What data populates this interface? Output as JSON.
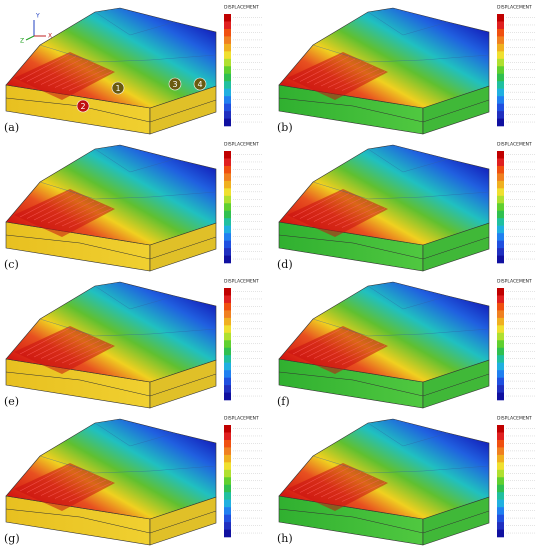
{
  "panels": [
    {
      "label": "(a)",
      "legend_title": "DISPLACEMENT"
    },
    {
      "label": "(b)",
      "legend_title": "DISPLACEMENT"
    },
    {
      "label": "(c)",
      "legend_title": "DISPLACEMENT"
    },
    {
      "label": "(d)",
      "legend_title": "DISPLACEMENT"
    },
    {
      "label": "(e)",
      "legend_title": "DISPLACEMENT"
    },
    {
      "label": "(f)",
      "legend_title": "DISPLACEMENT"
    },
    {
      "label": "(g)",
      "legend_title": "DISPLACEMENT"
    },
    {
      "label": "(h)",
      "legend_title": "DISPLACEMENT"
    }
  ],
  "points": [
    {
      "label": "1"
    },
    {
      "label": "2"
    },
    {
      "label": "3"
    },
    {
      "label": "4"
    }
  ],
  "axes": [
    "Y",
    "X",
    "Z"
  ]
}
